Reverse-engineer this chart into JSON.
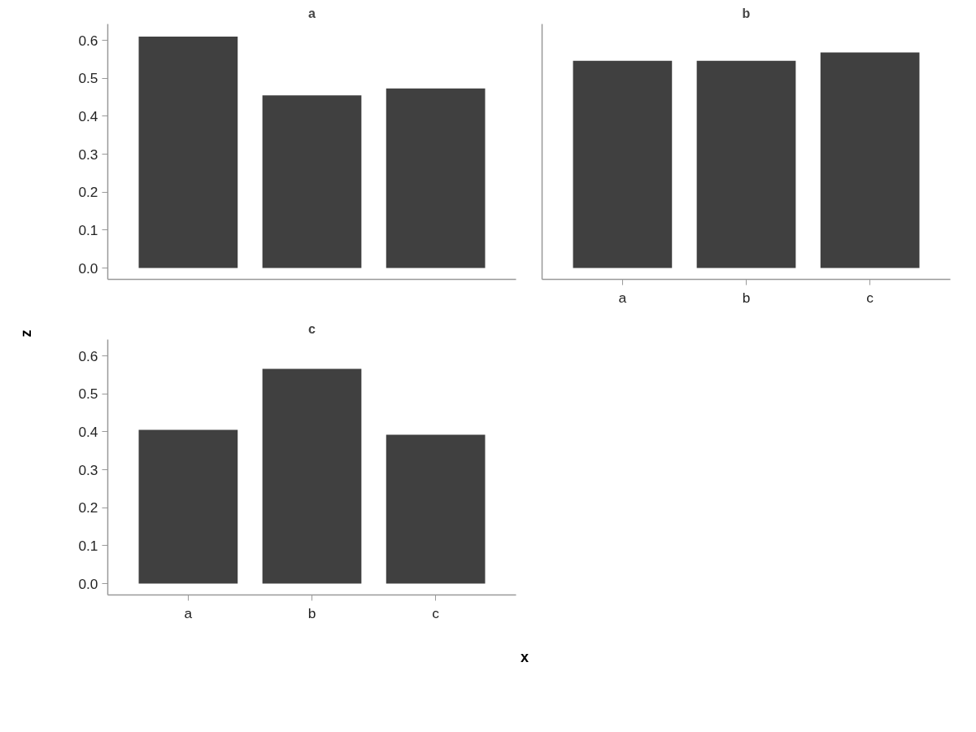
{
  "chart_data": [
    {
      "type": "bar",
      "title": "a",
      "ylabel": "z",
      "categories": [
        null,
        null,
        null
      ],
      "values": [
        0.61,
        0.455,
        0.473
      ],
      "color": "#404040",
      "ylim": [
        -0.03,
        0.643
      ],
      "yticks": [
        {
          "value": 0,
          "label": "0.0"
        },
        {
          "value": 0.1,
          "label": "0.1"
        },
        {
          "value": 0.2,
          "label": "0.2"
        },
        {
          "value": 0.3,
          "label": "0.3"
        },
        {
          "value": 0.4,
          "label": "0.4"
        },
        {
          "value": 0.5,
          "label": "0.5"
        },
        {
          "value": 0.6,
          "label": "0.6"
        }
      ],
      "tick_labels": "y"
    },
    {
      "type": "bar",
      "title": "b",
      "categories": [
        "a",
        "b",
        "c"
      ],
      "values": [
        0.546,
        0.546,
        0.568
      ],
      "color": "#404040",
      "ylim": [
        -0.03,
        0.643
      ],
      "tick_labels": "x"
    },
    {
      "type": "bar",
      "title": "c",
      "xlabel": "x",
      "categories": [
        "a",
        "b",
        "c"
      ],
      "values": [
        0.405,
        0.566,
        0.392
      ],
      "color": "#404040",
      "ylim": [
        -0.03,
        0.643
      ],
      "yticks": [
        {
          "value": 0,
          "label": "0.0"
        },
        {
          "value": 0.1,
          "label": "0.1"
        },
        {
          "value": 0.2,
          "label": "0.2"
        },
        {
          "value": 0.3,
          "label": "0.3"
        },
        {
          "value": 0.4,
          "label": "0.4"
        },
        {
          "value": 0.5,
          "label": "0.5"
        },
        {
          "value": 0.6,
          "label": "0.6"
        }
      ]
    }
  ]
}
